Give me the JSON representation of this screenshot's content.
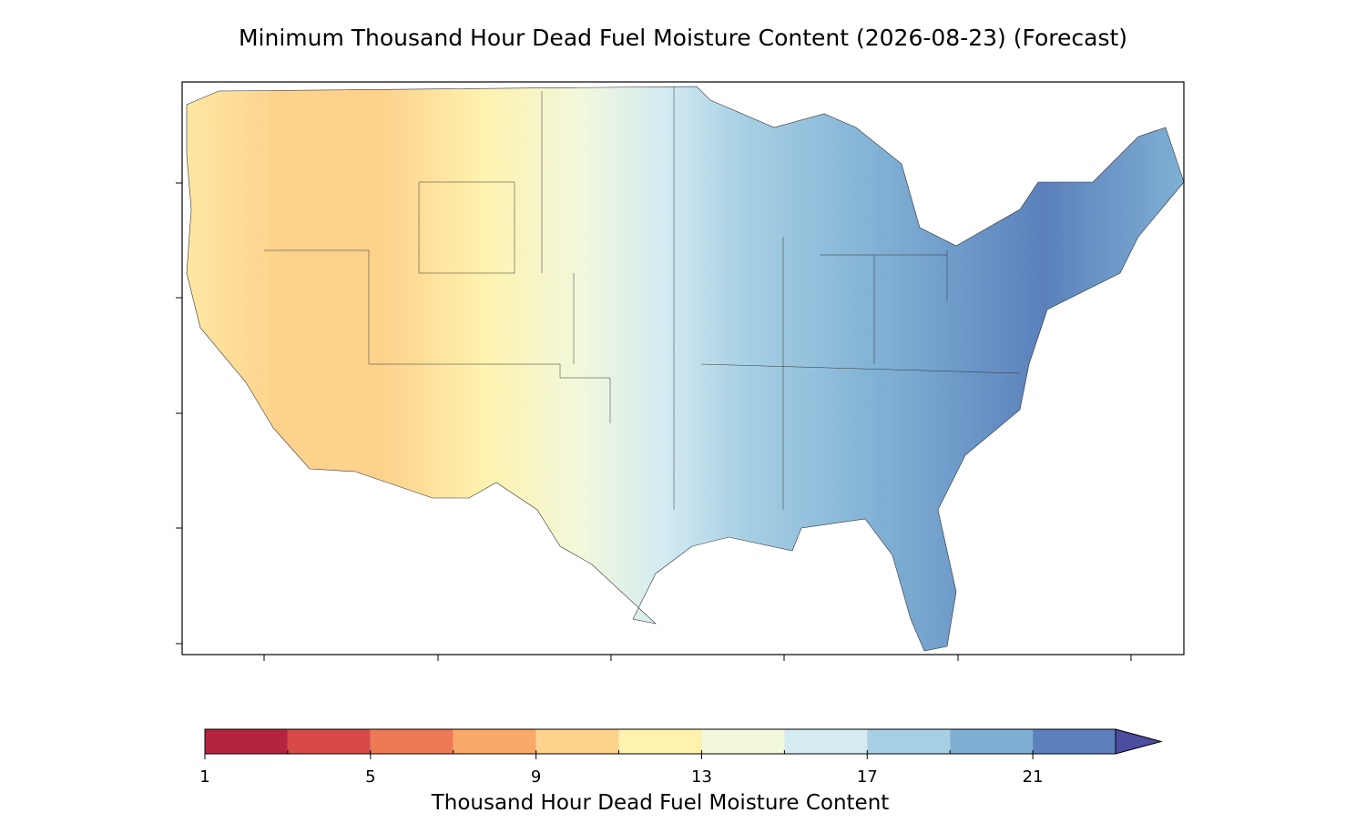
{
  "title": "Minimum Thousand Hour Dead Fuel Moisture Content (2026-08-23) (Forecast)",
  "colorbar": {
    "label": "Thousand Hour Dead Fuel Moisture Content",
    "levels": [
      1,
      3,
      5,
      7,
      9,
      11,
      13,
      15,
      17,
      19,
      21,
      23
    ],
    "colors": [
      "#b5243f",
      "#d84a47",
      "#ee7a55",
      "#f9a96a",
      "#fdd28c",
      "#fef2ae",
      "#f1f8dc",
      "#d4ebf2",
      "#a8d0e4",
      "#7fb0d4",
      "#5b80bb"
    ],
    "extend_color": "#4d4d9f",
    "ticks": [
      1,
      5,
      9,
      13,
      17,
      21
    ]
  }
}
